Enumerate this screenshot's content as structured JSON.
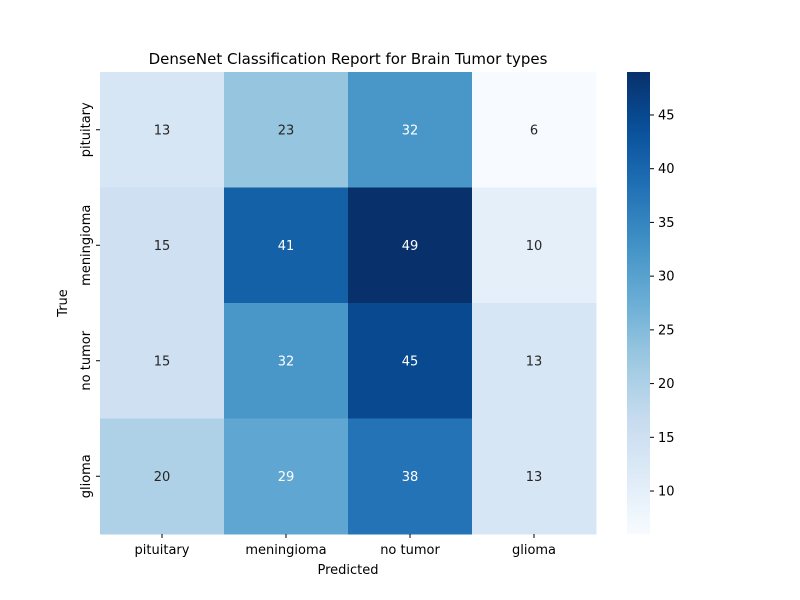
{
  "chart_data": {
    "type": "heatmap",
    "title": "DenseNet Classification Report for Brain Tumor types",
    "xlabel": "Predicted",
    "ylabel": "True",
    "x_categories": [
      "pituitary",
      "meningioma",
      "no tumor",
      "glioma"
    ],
    "y_categories": [
      "pituitary",
      "meningioma",
      "no tumor",
      "glioma"
    ],
    "values": [
      [
        13,
        23,
        32,
        6
      ],
      [
        15,
        41,
        49,
        10
      ],
      [
        15,
        32,
        45,
        13
      ],
      [
        20,
        29,
        38,
        13
      ]
    ],
    "colormap": "Blues",
    "vmin": 6,
    "vmax": 49,
    "colorbar_ticks": [
      10,
      15,
      20,
      25,
      30,
      35,
      40,
      45
    ],
    "annotations": true,
    "grid": false,
    "legend": "colorbar-right"
  }
}
